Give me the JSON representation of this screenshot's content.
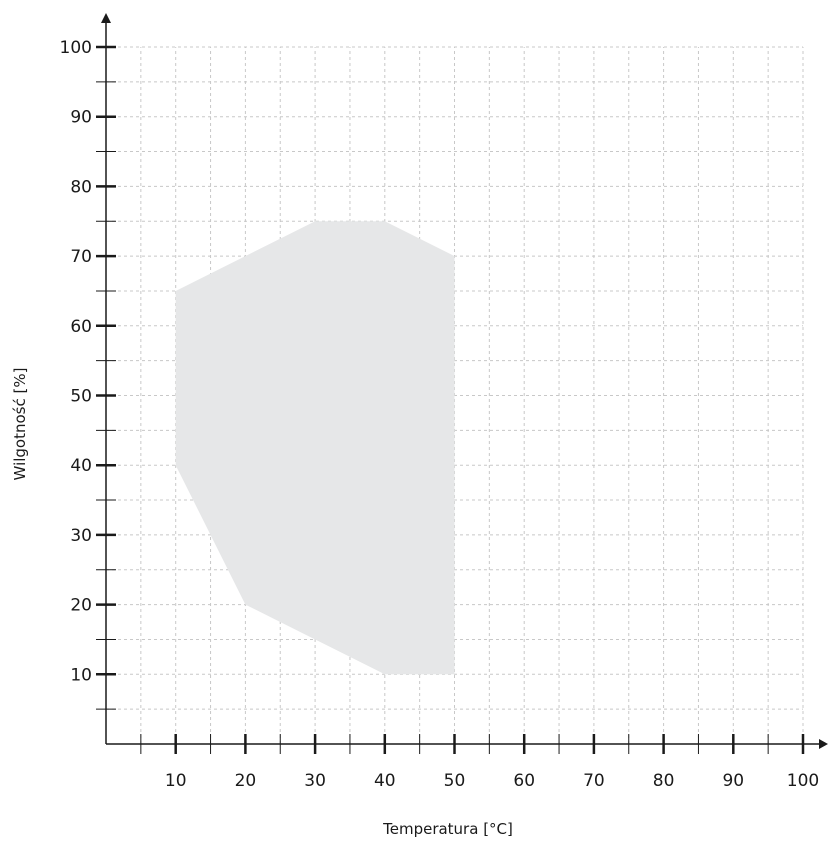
{
  "chart_data": {
    "type": "area",
    "title": "",
    "xlabel": "Temperatura [°C]",
    "ylabel": "Wilgotność [%]",
    "xlim": [
      0,
      100
    ],
    "ylim": [
      0,
      100
    ],
    "x_ticks_major": [
      10,
      20,
      30,
      40,
      50,
      60,
      70,
      80,
      90,
      100
    ],
    "x_ticks_minor": [
      5,
      15,
      25,
      35,
      45,
      55,
      65,
      75,
      85,
      95
    ],
    "y_ticks_major": [
      10,
      20,
      30,
      40,
      50,
      60,
      70,
      80,
      90,
      100
    ],
    "y_ticks_minor": [
      5,
      15,
      25,
      35,
      45,
      55,
      65,
      75,
      85,
      95
    ],
    "grid": true,
    "grid_step": 5,
    "region": {
      "fill_color": "#e6e7e8",
      "points": [
        {
          "x": 10,
          "y": 65
        },
        {
          "x": 30,
          "y": 75
        },
        {
          "x": 40,
          "y": 75
        },
        {
          "x": 50,
          "y": 70
        },
        {
          "x": 50,
          "y": 10
        },
        {
          "x": 40,
          "y": 10
        },
        {
          "x": 20,
          "y": 20
        },
        {
          "x": 10,
          "y": 40
        }
      ]
    },
    "colors": {
      "axis": "#1a1a1a",
      "grid": "#c8c8c8"
    }
  }
}
